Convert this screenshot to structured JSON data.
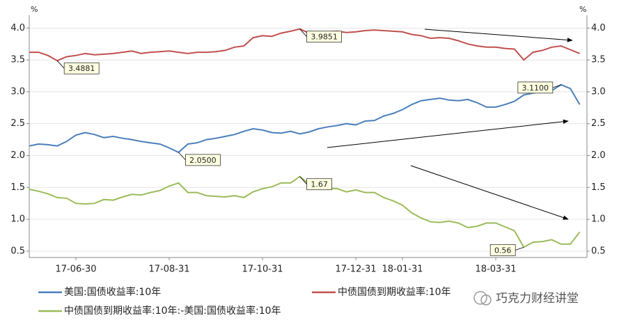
{
  "chart_data": {
    "type": "line",
    "y_label": "%",
    "y2_label": "%",
    "categories": [
      null,
      null,
      null,
      null,
      null,
      "17-06-30",
      null,
      null,
      null,
      null,
      null,
      null,
      null,
      null,
      null,
      "17-08-31",
      null,
      null,
      null,
      null,
      null,
      null,
      null,
      null,
      null,
      "17-10-31",
      null,
      null,
      null,
      null,
      null,
      null,
      null,
      null,
      null,
      "17-12-31",
      null,
      null,
      null,
      null,
      "18-01-31",
      null,
      null,
      null,
      null,
      null,
      null,
      null,
      null,
      null,
      "18-03-31",
      null,
      null,
      null,
      null,
      null,
      null,
      null,
      null,
      null
    ],
    "series": [
      {
        "name": "美国:国债收益率:10年",
        "color": "#4a7ebb",
        "values": [
          2.15,
          2.18,
          2.17,
          2.15,
          2.22,
          2.32,
          2.36,
          2.33,
          2.28,
          2.3,
          2.27,
          2.25,
          2.22,
          2.2,
          2.18,
          2.12,
          2.05,
          2.18,
          2.2,
          2.25,
          2.27,
          2.3,
          2.33,
          2.38,
          2.42,
          2.4,
          2.36,
          2.35,
          2.38,
          2.34,
          2.37,
          2.42,
          2.45,
          2.47,
          2.5,
          2.48,
          2.54,
          2.55,
          2.62,
          2.66,
          2.72,
          2.8,
          2.86,
          2.88,
          2.9,
          2.87,
          2.86,
          2.88,
          2.83,
          2.76,
          2.76,
          2.8,
          2.85,
          2.95,
          2.98,
          3.0,
          3.02,
          3.11,
          3.05,
          2.8
        ],
        "value_labels": [
          null,
          null,
          null,
          null,
          null,
          null,
          null,
          null,
          null,
          null,
          null,
          null,
          null,
          null,
          null,
          null,
          "2.0500",
          null,
          null,
          null,
          null,
          null,
          null,
          null,
          null,
          null,
          null,
          null,
          null,
          null,
          null,
          null,
          null,
          null,
          null,
          null,
          null,
          null,
          null,
          null,
          null,
          null,
          null,
          null,
          null,
          null,
          null,
          null,
          null,
          null,
          null,
          null,
          null,
          null,
          null,
          null,
          null,
          "3.1100",
          null,
          null
        ]
      },
      {
        "name": "中债国债到期收益率:10年",
        "color": "#c0504d",
        "values": [
          3.62,
          3.62,
          3.57,
          3.4881,
          3.55,
          3.57,
          3.6,
          3.58,
          3.59,
          3.6,
          3.62,
          3.64,
          3.6,
          3.62,
          3.63,
          3.64,
          3.62,
          3.6,
          3.62,
          3.62,
          3.63,
          3.65,
          3.7,
          3.72,
          3.85,
          3.88,
          3.87,
          3.92,
          3.95,
          3.9851,
          3.92,
          3.93,
          3.94,
          3.95,
          3.93,
          3.94,
          3.96,
          3.97,
          3.96,
          3.95,
          3.94,
          3.9,
          3.88,
          3.84,
          3.85,
          3.84,
          3.8,
          3.75,
          3.72,
          3.7,
          3.7,
          3.68,
          3.67,
          3.5,
          3.62,
          3.65,
          3.7,
          3.72,
          3.66,
          3.6
        ],
        "value_labels": [
          null,
          null,
          null,
          "3.4881",
          null,
          null,
          null,
          null,
          null,
          null,
          null,
          null,
          null,
          null,
          null,
          null,
          null,
          null,
          null,
          null,
          null,
          null,
          null,
          null,
          null,
          null,
          null,
          null,
          null,
          "3.9851",
          null,
          null,
          null,
          null,
          null,
          null,
          null,
          null,
          null,
          null,
          null,
          null,
          null,
          null,
          null,
          null,
          null,
          null,
          null,
          null,
          null,
          null,
          null,
          null,
          null,
          null,
          null,
          null,
          null,
          null
        ]
      },
      {
        "name": "中债国债到期收益率:10年:-美国:国债收益率:10年",
        "color": "#9bbb59",
        "values": [
          1.47,
          1.44,
          1.4,
          1.34,
          1.33,
          1.25,
          1.24,
          1.25,
          1.31,
          1.3,
          1.35,
          1.39,
          1.38,
          1.42,
          1.45,
          1.52,
          1.57,
          1.42,
          1.42,
          1.37,
          1.36,
          1.35,
          1.37,
          1.34,
          1.43,
          1.48,
          1.51,
          1.57,
          1.57,
          1.67,
          1.55,
          1.51,
          1.49,
          1.48,
          1.43,
          1.46,
          1.42,
          1.42,
          1.34,
          1.29,
          1.22,
          1.1,
          1.02,
          0.96,
          0.95,
          0.97,
          0.94,
          0.87,
          0.89,
          0.94,
          0.94,
          0.88,
          0.82,
          0.56,
          0.64,
          0.65,
          0.68,
          0.61,
          0.61,
          0.8
        ],
        "value_labels": [
          null,
          null,
          null,
          null,
          null,
          null,
          null,
          null,
          null,
          null,
          null,
          null,
          null,
          null,
          null,
          null,
          null,
          null,
          null,
          null,
          null,
          null,
          null,
          null,
          null,
          null,
          null,
          null,
          null,
          "1.67",
          null,
          null,
          null,
          null,
          null,
          null,
          null,
          null,
          null,
          null,
          null,
          null,
          null,
          null,
          null,
          null,
          null,
          null,
          null,
          null,
          null,
          null,
          null,
          "0.56",
          null,
          null,
          null,
          null,
          null,
          null
        ]
      }
    ],
    "ylim": [
      0.4,
      4.2
    ],
    "yticks": [
      0.5,
      {
        "value": 1.0,
        "label": "1.0"
      },
      1.5,
      {
        "value": 2.0,
        "label": "2.0"
      },
      2.5,
      {
        "value": 3.0,
        "label": "3.0"
      },
      3.5,
      {
        "value": 4.0,
        "label": "4.0"
      }
    ],
    "y2lim": [
      0.4,
      4.2
    ],
    "y2ticks": [
      0.5,
      {
        "value": 1.0,
        "label": "1.0"
      },
      1.5,
      {
        "value": 2.0,
        "label": "2.0"
      },
      2.5,
      {
        "value": 3.0,
        "label": "3.0"
      },
      3.5,
      {
        "value": 4.0,
        "label": "4.0"
      }
    ],
    "grid": true,
    "watermark": "巧克力财经讲堂"
  }
}
